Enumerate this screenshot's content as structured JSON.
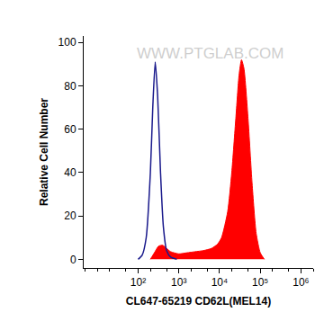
{
  "chart_data": {
    "type": "histogram",
    "xlabel": "CL647-65219 CD62L(MEL14)",
    "ylabel": "Relative Cell Number",
    "annotations": [
      {
        "text": "WWW.PTGLAB.COM"
      }
    ],
    "log": "x",
    "xlim": [
      4.6,
      2000000
    ],
    "xticks": [
      {
        "value": 100,
        "label": "10²"
      },
      {
        "value": 1000,
        "label": "10³"
      },
      {
        "value": 10000,
        "label": "10⁴"
      },
      {
        "value": 100000,
        "label": "10⁵"
      },
      {
        "value": 1000000,
        "label": "10⁶"
      }
    ],
    "ylim": [
      -4,
      103
    ],
    "yticks": [
      0,
      20,
      40,
      60,
      80,
      100
    ],
    "grid": false,
    "series": [
      {
        "type": "line",
        "color": "#1a1a8c",
        "x": [
          100,
          126,
          158,
          200,
          229,
          263,
          302,
          355,
          417,
          501,
          631,
          891
        ],
        "values": [
          0,
          2,
          10,
          40,
          70,
          91,
          75,
          40,
          15,
          4,
          1,
          0
        ]
      },
      {
        "type": "area",
        "color": "#ff0000",
        "x": [
          200,
          251,
          316,
          398,
          501,
          631,
          1000,
          1585,
          2512,
          3981,
          6310,
          8913,
          11220,
          15850,
          19950,
          25120,
          30200,
          34670,
          39810,
          50120,
          63100,
          79430,
          100000,
          125900
        ],
        "values": [
          0,
          3,
          6,
          6.5,
          5,
          3.5,
          2.5,
          3,
          3.5,
          4,
          5,
          7,
          10,
          22,
          40,
          65,
          85,
          92,
          88,
          65,
          35,
          12,
          3,
          0
        ]
      }
    ]
  }
}
